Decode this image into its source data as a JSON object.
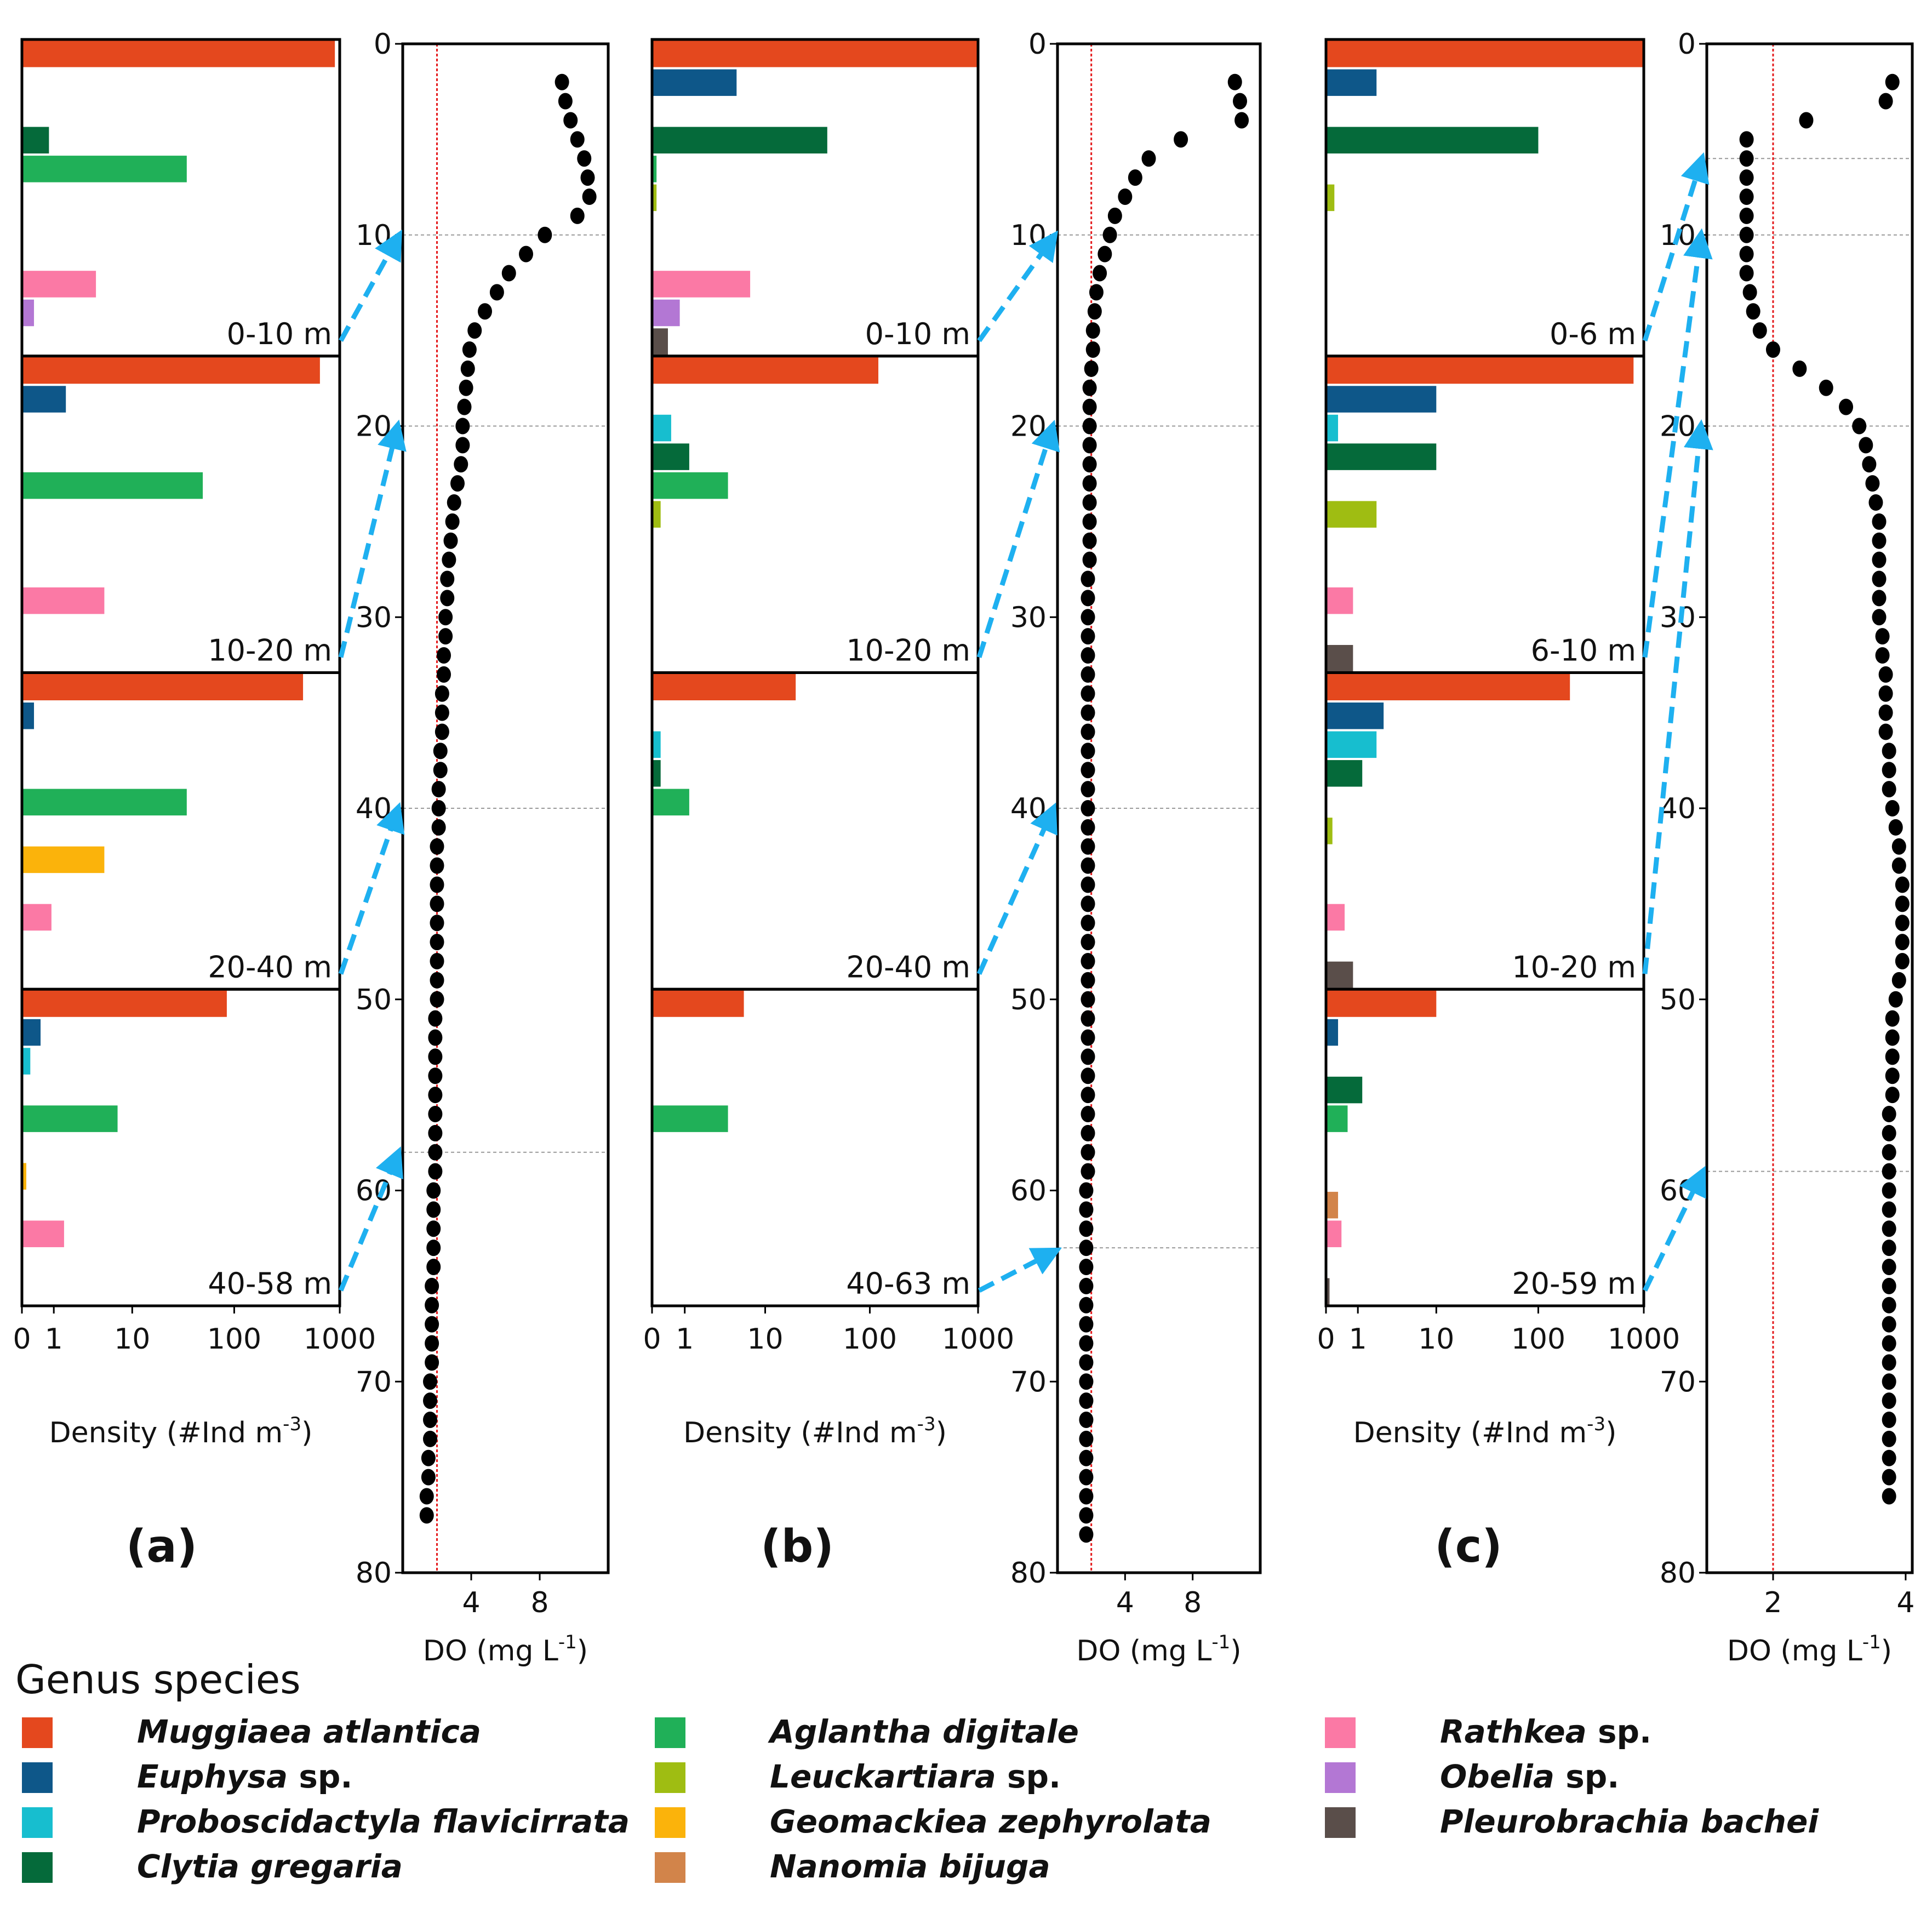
{
  "figure": {
    "panel_labels": [
      "(a)",
      "(b)",
      "(c)"
    ],
    "density_axis_label": "Density (#Ind m",
    "density_axis_sup": "-3",
    "density_axis_close": ")",
    "do_axis_label": "DO (mg L",
    "do_axis_sup": "-1",
    "do_axis_close": ")",
    "legend_title": "Genus species"
  },
  "colors": {
    "Muggiaea atlantica": "#e4481e",
    "Euphysa sp.": "#0e5789",
    "Proboscidactyla flavicirrata": "#17becf",
    "Clytia gregaria": "#056a3a",
    "Aglantha digitale": "#20b058",
    "Leuckartiara sp.": "#9fbd12",
    "Geomackiea zephyrolata": "#fbb30b",
    "Nanomia bijuga": "#d2844a",
    "Rathkea sp.": "#fb79a5",
    "Obelia sp.": "#b377d4",
    "Pleurobrachia bachei": "#5a4e4a",
    "do_points": "#000000",
    "hypoxia_line": "#e41a1c",
    "arrow": "#1eb0f0"
  },
  "legend": [
    {
      "genus": "Muggiaea",
      "epithet": "atlantica",
      "key": "Muggiaea atlantica"
    },
    {
      "genus": "Euphysa",
      "epithet": "sp.",
      "key": "Euphysa sp."
    },
    {
      "genus": "Proboscidactyla",
      "epithet": "flavicirrata",
      "key": "Proboscidactyla flavicirrata"
    },
    {
      "genus": "Clytia",
      "epithet": "gregaria",
      "key": "Clytia gregaria"
    },
    {
      "genus": "Aglantha",
      "epithet": "digitale",
      "key": "Aglantha digitale"
    },
    {
      "genus": "Leuckartiara",
      "epithet": "sp.",
      "key": "Leuckartiara sp."
    },
    {
      "genus": "Geomackiea",
      "epithet": "zephyrolata",
      "key": "Geomackiea zephyrolata"
    },
    {
      "genus": "Nanomia",
      "epithet": "bijuga",
      "key": "Nanomia bijuga"
    },
    {
      "genus": "Rathkea",
      "epithet": "sp.",
      "key": "Rathkea sp."
    },
    {
      "genus": "Obelia",
      "epithet": "sp.",
      "key": "Obelia sp."
    },
    {
      "genus": "Pleurobrachia",
      "epithet": "bachei",
      "key": "Pleurobrachia bachei"
    }
  ],
  "chart_data": [
    {
      "type": "bar",
      "panel": "(a)",
      "orientation": "horizontal",
      "scale": "log1p",
      "x_ticks": [
        "0",
        "1",
        "10",
        "100",
        "1000"
      ],
      "xlabel": "Density (#Ind m-3)",
      "species_order": [
        "Muggiaea atlantica",
        "Euphysa sp.",
        "Proboscidactyla flavicirrata",
        "Clytia gregaria",
        "Aglantha digitale",
        "Leuckartiara sp.",
        "Geomackiea zephyrolata",
        "Nanomia bijuga",
        "Rathkea sp.",
        "Obelia sp.",
        "Pleurobrachia bachei"
      ],
      "layers": [
        {
          "range": "0-10 m",
          "values": [
            900,
            0,
            0,
            0.8,
            35,
            0,
            0,
            0,
            4,
            0.3,
            0
          ]
        },
        {
          "range": "10-20 m",
          "values": [
            650,
            1.6,
            0,
            0,
            50,
            0,
            0,
            0,
            5,
            0,
            0
          ]
        },
        {
          "range": "20-40 m",
          "values": [
            450,
            0.3,
            0,
            0,
            35,
            0,
            5,
            0,
            0.9,
            0,
            0
          ]
        },
        {
          "range": "40-58 m",
          "values": [
            85,
            0.5,
            0.2,
            0,
            7,
            0,
            0.1,
            0,
            1.5,
            0,
            0
          ]
        }
      ]
    },
    {
      "type": "scatter",
      "panel": "(a) DO profile",
      "xlabel": "DO (mg L-1)",
      "ylabel": "",
      "x_ticks": [
        "4",
        "8"
      ],
      "y_ticks": [
        "0",
        "10",
        "20",
        "30",
        "40",
        "50",
        "60",
        "70",
        "80"
      ],
      "xlim": [
        0,
        12
      ],
      "ylim": [
        80,
        0
      ],
      "hypoxia_threshold": 2,
      "layer_boundaries": [
        10,
        20,
        40,
        58
      ],
      "points": [
        [
          9.3,
          2
        ],
        [
          9.5,
          3
        ],
        [
          9.8,
          4
        ],
        [
          10.2,
          5
        ],
        [
          10.6,
          6
        ],
        [
          10.8,
          7
        ],
        [
          10.9,
          8
        ],
        [
          10.2,
          9
        ],
        [
          8.3,
          10
        ],
        [
          7.2,
          11
        ],
        [
          6.2,
          12
        ],
        [
          5.5,
          13
        ],
        [
          4.8,
          14
        ],
        [
          4.2,
          15
        ],
        [
          3.9,
          16
        ],
        [
          3.8,
          17
        ],
        [
          3.7,
          18
        ],
        [
          3.6,
          19
        ],
        [
          3.5,
          20
        ],
        [
          3.5,
          21
        ],
        [
          3.4,
          22
        ],
        [
          3.2,
          23
        ],
        [
          3.0,
          24
        ],
        [
          2.9,
          25
        ],
        [
          2.8,
          26
        ],
        [
          2.7,
          27
        ],
        [
          2.6,
          28
        ],
        [
          2.6,
          29
        ],
        [
          2.5,
          30
        ],
        [
          2.5,
          31
        ],
        [
          2.4,
          32
        ],
        [
          2.4,
          33
        ],
        [
          2.3,
          34
        ],
        [
          2.3,
          35
        ],
        [
          2.3,
          36
        ],
        [
          2.2,
          37
        ],
        [
          2.2,
          38
        ],
        [
          2.1,
          39
        ],
        [
          2.1,
          40
        ],
        [
          2.1,
          41
        ],
        [
          2.0,
          42
        ],
        [
          2.0,
          43
        ],
        [
          2.0,
          44
        ],
        [
          2.0,
          45
        ],
        [
          2.0,
          46
        ],
        [
          2.0,
          47
        ],
        [
          2.0,
          48
        ],
        [
          2.0,
          49
        ],
        [
          2.0,
          50
        ],
        [
          1.9,
          51
        ],
        [
          1.9,
          52
        ],
        [
          1.9,
          53
        ],
        [
          1.9,
          54
        ],
        [
          1.9,
          55
        ],
        [
          1.9,
          56
        ],
        [
          1.9,
          57
        ],
        [
          1.9,
          58
        ],
        [
          1.9,
          59
        ],
        [
          1.8,
          60
        ],
        [
          1.8,
          61
        ],
        [
          1.8,
          62
        ],
        [
          1.8,
          63
        ],
        [
          1.8,
          64
        ],
        [
          1.7,
          65
        ],
        [
          1.7,
          66
        ],
        [
          1.7,
          67
        ],
        [
          1.7,
          68
        ],
        [
          1.7,
          69
        ],
        [
          1.6,
          70
        ],
        [
          1.6,
          71
        ],
        [
          1.6,
          72
        ],
        [
          1.6,
          73
        ],
        [
          1.5,
          74
        ],
        [
          1.5,
          75
        ],
        [
          1.4,
          76
        ],
        [
          1.4,
          77
        ]
      ]
    },
    {
      "type": "bar",
      "panel": "(b)",
      "orientation": "horizontal",
      "scale": "log1p",
      "x_ticks": [
        "0",
        "1",
        "10",
        "100",
        "1000"
      ],
      "xlabel": "Density (#Ind m-3)",
      "species_order": [
        "Muggiaea atlantica",
        "Euphysa sp.",
        "Proboscidactyla flavicirrata",
        "Clytia gregaria",
        "Aglantha digitale",
        "Leuckartiara sp.",
        "Geomackiea zephyrolata",
        "Nanomia bijuga",
        "Rathkea sp.",
        "Obelia sp.",
        "Pleurobrachia bachei"
      ],
      "layers": [
        {
          "range": "0-10 m",
          "values": [
            1000,
            5,
            0,
            40,
            0.1,
            0.1,
            0,
            0,
            7,
            0.8,
            0.4
          ]
        },
        {
          "range": "10-20 m",
          "values": [
            120,
            0,
            0.5,
            1.2,
            4,
            0.2,
            0,
            0,
            0,
            0,
            0
          ]
        },
        {
          "range": "20-40 m",
          "values": [
            20,
            0,
            0.2,
            0.2,
            1.2,
            0,
            0,
            0,
            0,
            0,
            0
          ]
        },
        {
          "range": "40-63 m",
          "values": [
            6,
            0,
            0,
            0,
            4,
            0,
            0,
            0,
            0,
            0,
            0
          ]
        }
      ]
    },
    {
      "type": "scatter",
      "panel": "(b) DO profile",
      "xlabel": "DO (mg L-1)",
      "ylabel": "",
      "x_ticks": [
        "4",
        "8"
      ],
      "y_ticks": [
        "0",
        "10",
        "20",
        "30",
        "40",
        "50",
        "60",
        "70",
        "80"
      ],
      "xlim": [
        0,
        12
      ],
      "ylim": [
        80,
        0
      ],
      "hypoxia_threshold": 2,
      "layer_boundaries": [
        10,
        20,
        40,
        63
      ],
      "points": [
        [
          10.5,
          2
        ],
        [
          10.8,
          3
        ],
        [
          10.9,
          4
        ],
        [
          7.3,
          5
        ],
        [
          5.4,
          6
        ],
        [
          4.6,
          7
        ],
        [
          4.0,
          8
        ],
        [
          3.4,
          9
        ],
        [
          3.1,
          10
        ],
        [
          2.8,
          11
        ],
        [
          2.5,
          12
        ],
        [
          2.3,
          13
        ],
        [
          2.2,
          14
        ],
        [
          2.1,
          15
        ],
        [
          2.1,
          16
        ],
        [
          2.0,
          17
        ],
        [
          1.9,
          18
        ],
        [
          1.9,
          19
        ],
        [
          1.9,
          20
        ],
        [
          1.9,
          21
        ],
        [
          1.9,
          22
        ],
        [
          1.9,
          23
        ],
        [
          1.9,
          24
        ],
        [
          1.9,
          25
        ],
        [
          1.9,
          26
        ],
        [
          1.9,
          27
        ],
        [
          1.8,
          28
        ],
        [
          1.8,
          29
        ],
        [
          1.8,
          30
        ],
        [
          1.8,
          31
        ],
        [
          1.8,
          32
        ],
        [
          1.8,
          33
        ],
        [
          1.8,
          34
        ],
        [
          1.8,
          35
        ],
        [
          1.8,
          36
        ],
        [
          1.8,
          37
        ],
        [
          1.8,
          38
        ],
        [
          1.8,
          39
        ],
        [
          1.8,
          40
        ],
        [
          1.8,
          41
        ],
        [
          1.8,
          42
        ],
        [
          1.8,
          43
        ],
        [
          1.8,
          44
        ],
        [
          1.8,
          45
        ],
        [
          1.8,
          46
        ],
        [
          1.8,
          47
        ],
        [
          1.8,
          48
        ],
        [
          1.8,
          49
        ],
        [
          1.8,
          50
        ],
        [
          1.8,
          51
        ],
        [
          1.8,
          52
        ],
        [
          1.8,
          53
        ],
        [
          1.8,
          54
        ],
        [
          1.8,
          55
        ],
        [
          1.8,
          56
        ],
        [
          1.8,
          57
        ],
        [
          1.8,
          58
        ],
        [
          1.8,
          59
        ],
        [
          1.7,
          60
        ],
        [
          1.7,
          61
        ],
        [
          1.7,
          62
        ],
        [
          1.7,
          63
        ],
        [
          1.7,
          64
        ],
        [
          1.7,
          65
        ],
        [
          1.7,
          66
        ],
        [
          1.7,
          67
        ],
        [
          1.7,
          68
        ],
        [
          1.7,
          69
        ],
        [
          1.7,
          70
        ],
        [
          1.7,
          71
        ],
        [
          1.7,
          72
        ],
        [
          1.7,
          73
        ],
        [
          1.7,
          74
        ],
        [
          1.7,
          75
        ],
        [
          1.7,
          76
        ],
        [
          1.7,
          77
        ],
        [
          1.7,
          78
        ]
      ]
    },
    {
      "type": "bar",
      "panel": "(c)",
      "orientation": "horizontal",
      "scale": "log1p",
      "x_ticks": [
        "0",
        "1",
        "10",
        "100",
        "1000"
      ],
      "xlabel": "Density (#Ind m-3)",
      "species_order": [
        "Muggiaea atlantica",
        "Euphysa sp.",
        "Proboscidactyla flavicirrata",
        "Clytia gregaria",
        "Aglantha digitale",
        "Leuckartiara sp.",
        "Geomackiea zephyrolata",
        "Nanomia bijuga",
        "Rathkea sp.",
        "Obelia sp.",
        "Pleurobrachia bachei"
      ],
      "layers": [
        {
          "range": "0-6 m",
          "values": [
            1000,
            2,
            0.03,
            100,
            0,
            0.2,
            0,
            0,
            0.03,
            0,
            0.03
          ]
        },
        {
          "range": "6-10 m",
          "values": [
            800,
            10,
            0.3,
            10,
            0,
            2,
            0,
            0,
            0.8,
            0,
            0.8
          ]
        },
        {
          "range": "10-20 m",
          "values": [
            200,
            2.5,
            2,
            1.2,
            0,
            0.15,
            0,
            0,
            0.5,
            0,
            0.8
          ]
        },
        {
          "range": "20-59 m",
          "values": [
            10,
            0.3,
            0,
            1.2,
            0.6,
            0.03,
            0,
            0.3,
            0.4,
            0,
            0.08
          ]
        }
      ]
    },
    {
      "type": "scatter",
      "panel": "(c) DO profile",
      "xlabel": "DO (mg L-1)",
      "ylabel": "",
      "x_ticks": [
        "2",
        "4"
      ],
      "y_ticks": [
        "0",
        "10",
        "20",
        "30",
        "40",
        "50",
        "60",
        "70",
        "80"
      ],
      "xlim": [
        1,
        4.1
      ],
      "ylim": [
        80,
        0
      ],
      "hypoxia_threshold": 2,
      "layer_boundaries": [
        6,
        10,
        20,
        59
      ],
      "points": [
        [
          3.8,
          2
        ],
        [
          3.7,
          3
        ],
        [
          2.5,
          4
        ],
        [
          1.6,
          5
        ],
        [
          1.6,
          6
        ],
        [
          1.6,
          7
        ],
        [
          1.6,
          8
        ],
        [
          1.6,
          9
        ],
        [
          1.6,
          10
        ],
        [
          1.6,
          11
        ],
        [
          1.6,
          12
        ],
        [
          1.65,
          13
        ],
        [
          1.7,
          14
        ],
        [
          1.8,
          15
        ],
        [
          2.0,
          16
        ],
        [
          2.4,
          17
        ],
        [
          2.8,
          18
        ],
        [
          3.1,
          19
        ],
        [
          3.3,
          20
        ],
        [
          3.4,
          21
        ],
        [
          3.45,
          22
        ],
        [
          3.5,
          23
        ],
        [
          3.55,
          24
        ],
        [
          3.6,
          25
        ],
        [
          3.6,
          26
        ],
        [
          3.6,
          27
        ],
        [
          3.6,
          28
        ],
        [
          3.6,
          29
        ],
        [
          3.6,
          30
        ],
        [
          3.65,
          31
        ],
        [
          3.65,
          32
        ],
        [
          3.7,
          33
        ],
        [
          3.7,
          34
        ],
        [
          3.7,
          35
        ],
        [
          3.7,
          36
        ],
        [
          3.75,
          37
        ],
        [
          3.75,
          38
        ],
        [
          3.75,
          39
        ],
        [
          3.8,
          40
        ],
        [
          3.85,
          41
        ],
        [
          3.9,
          42
        ],
        [
          3.9,
          43
        ],
        [
          3.95,
          44
        ],
        [
          3.95,
          45
        ],
        [
          3.95,
          46
        ],
        [
          3.95,
          47
        ],
        [
          3.95,
          48
        ],
        [
          3.9,
          49
        ],
        [
          3.85,
          50
        ],
        [
          3.8,
          51
        ],
        [
          3.8,
          52
        ],
        [
          3.8,
          53
        ],
        [
          3.8,
          54
        ],
        [
          3.8,
          55
        ],
        [
          3.75,
          56
        ],
        [
          3.75,
          57
        ],
        [
          3.75,
          58
        ],
        [
          3.75,
          59
        ],
        [
          3.75,
          60
        ],
        [
          3.75,
          61
        ],
        [
          3.75,
          62
        ],
        [
          3.75,
          63
        ],
        [
          3.75,
          64
        ],
        [
          3.75,
          65
        ],
        [
          3.75,
          66
        ],
        [
          3.75,
          67
        ],
        [
          3.75,
          68
        ],
        [
          3.75,
          69
        ],
        [
          3.75,
          70
        ],
        [
          3.75,
          71
        ],
        [
          3.75,
          72
        ],
        [
          3.75,
          73
        ],
        [
          3.75,
          74
        ],
        [
          3.75,
          75
        ],
        [
          3.75,
          76
        ]
      ]
    }
  ]
}
